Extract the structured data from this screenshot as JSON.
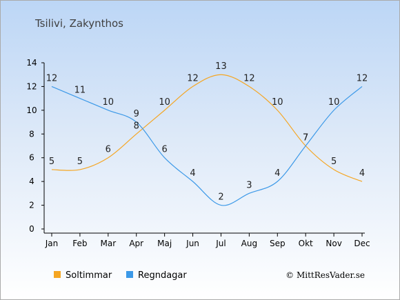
{
  "chart_data": {
    "type": "line",
    "title": "Tsilivi, Zakynthos",
    "categories": [
      "Jan",
      "Feb",
      "Mar",
      "Apr",
      "Maj",
      "Jun",
      "Jul",
      "Aug",
      "Sep",
      "Okt",
      "Nov",
      "Dec"
    ],
    "ylim": [
      0,
      14
    ],
    "yticks": [
      0,
      2,
      4,
      6,
      8,
      10,
      12,
      14
    ],
    "series": [
      {
        "name": "Soltimmar",
        "color": "#f5a623",
        "values": [
          5,
          5,
          6,
          8,
          10,
          12,
          13,
          12,
          10,
          7,
          5,
          4
        ]
      },
      {
        "name": "Regndagar",
        "color": "#3c99e8",
        "values": [
          12,
          11,
          10,
          9,
          6,
          4,
          2,
          3,
          4,
          7,
          10,
          12
        ]
      }
    ],
    "grid": false,
    "legend_position": "bottom-left",
    "credit": "© MittResVader.se"
  }
}
